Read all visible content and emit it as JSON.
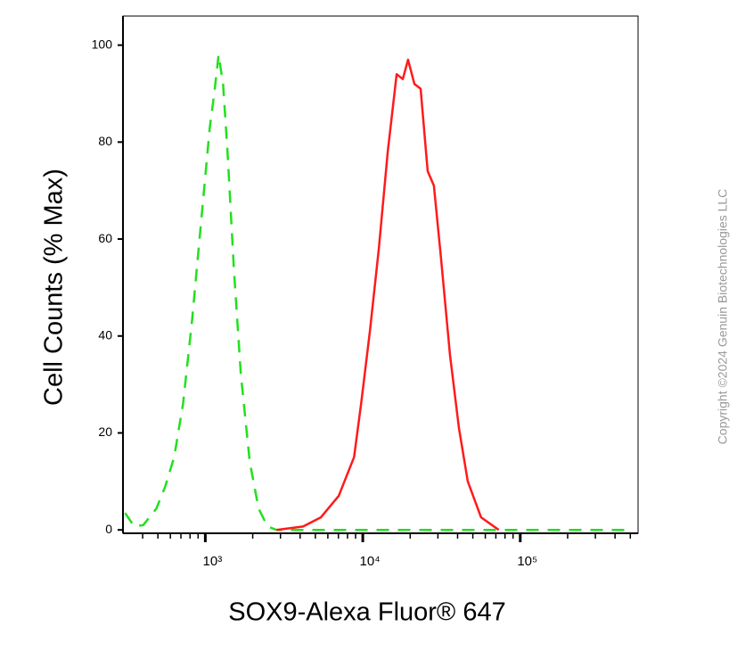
{
  "chart_data": {
    "type": "line",
    "xlabel": "SOX9-Alexa Fluor® 647",
    "ylabel": "Cell Counts (% Max)",
    "watermark": "Copyright ©2024 Genuin Biotechnologies LLC",
    "xscale": "log",
    "xlim": [
      300,
      560000
    ],
    "ylim": [
      -0.7,
      106
    ],
    "xticks": [
      {
        "value": 1000,
        "label": "10³"
      },
      {
        "value": 10000,
        "label": "10⁴"
      },
      {
        "value": 100000,
        "label": "10⁵"
      }
    ],
    "minor_xticks": [
      400,
      500,
      600,
      700,
      800,
      900,
      2000,
      3000,
      4000,
      5000,
      6000,
      7000,
      8000,
      9000,
      20000,
      30000,
      40000,
      50000,
      60000,
      70000,
      80000,
      90000,
      200000,
      300000,
      400000,
      500000
    ],
    "yticks": [
      0,
      20,
      40,
      60,
      80,
      100
    ],
    "series": [
      {
        "color": "#22e01e",
        "line_style": "dashed",
        "x": [
          309,
          354,
          403,
          489,
          557,
          634,
          722,
          823,
          937,
          1067,
          1139,
          1215,
          1297,
          1384,
          1517,
          1682,
          1915,
          2181,
          2484,
          2829,
          10000,
          100000,
          500000
        ],
        "values": [
          3.5,
          0.7,
          1,
          4.4,
          9,
          15,
          26,
          43,
          63,
          83,
          90,
          98,
          92,
          78,
          54,
          32,
          14,
          4.4,
          0.7,
          0,
          0,
          0,
          0
        ]
      },
      {
        "color": "#ff1a1a",
        "line_style": "solid",
        "x": [
          2829,
          4176,
          5420,
          7036,
          8804,
          9750,
          11100,
          12650,
          14400,
          16400,
          17960,
          19400,
          21270,
          23300,
          25830,
          28300,
          31400,
          35800,
          40800,
          46400,
          56400,
          73100
        ],
        "values": [
          0,
          0.7,
          2.6,
          7,
          15,
          26,
          41,
          58,
          78,
          94,
          93,
          97,
          92,
          91,
          74,
          71,
          56,
          36,
          21,
          10,
          2.6,
          0
        ]
      }
    ]
  }
}
